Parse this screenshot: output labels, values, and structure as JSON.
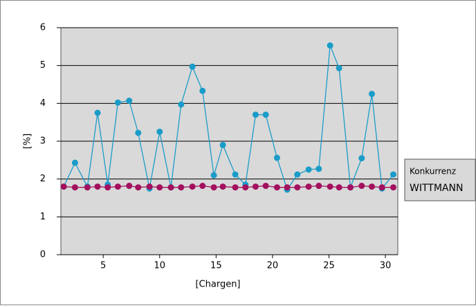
{
  "chart_data": {
    "type": "line",
    "x_label": "[Chargen]",
    "y_label": "[%]",
    "x": [
      1.5,
      2.5,
      3.6,
      4.5,
      5.4,
      6.3,
      7.3,
      8.1,
      9.1,
      10.0,
      11.0,
      11.9,
      12.9,
      13.8,
      14.8,
      15.6,
      16.7,
      17.6,
      18.5,
      19.4,
      20.4,
      21.3,
      22.2,
      23.2,
      24.1,
      25.1,
      25.9,
      26.9,
      27.9,
      28.8,
      29.7,
      30.7
    ],
    "series": [
      {
        "name": "Konkurrenz",
        "color": "#1a9cc8",
        "values": [
          1.8,
          2.43,
          1.8,
          3.75,
          1.85,
          4.02,
          4.07,
          3.22,
          1.75,
          3.25,
          1.78,
          3.97,
          4.97,
          4.33,
          2.1,
          2.9,
          2.12,
          1.85,
          3.7,
          3.7,
          2.56,
          1.72,
          2.12,
          2.25,
          2.27,
          5.53,
          4.93,
          1.78,
          2.55,
          4.25,
          1.75,
          2.12
        ]
      },
      {
        "name": "WITTMANN",
        "color": "#a3105e",
        "values": [
          1.8,
          1.78,
          1.78,
          1.8,
          1.78,
          1.8,
          1.82,
          1.78,
          1.8,
          1.78,
          1.78,
          1.78,
          1.8,
          1.82,
          1.78,
          1.8,
          1.78,
          1.78,
          1.8,
          1.82,
          1.78,
          1.78,
          1.78,
          1.8,
          1.82,
          1.8,
          1.78,
          1.78,
          1.82,
          1.8,
          1.78,
          1.78
        ]
      }
    ],
    "xlim": [
      1.25,
      31.1
    ],
    "xticks": [
      5,
      10,
      15,
      20,
      25,
      30
    ],
    "ylim": [
      0,
      6
    ],
    "yticks": [
      0,
      1,
      2,
      3,
      4,
      5,
      6
    ],
    "grid": true,
    "legend": "right"
  }
}
